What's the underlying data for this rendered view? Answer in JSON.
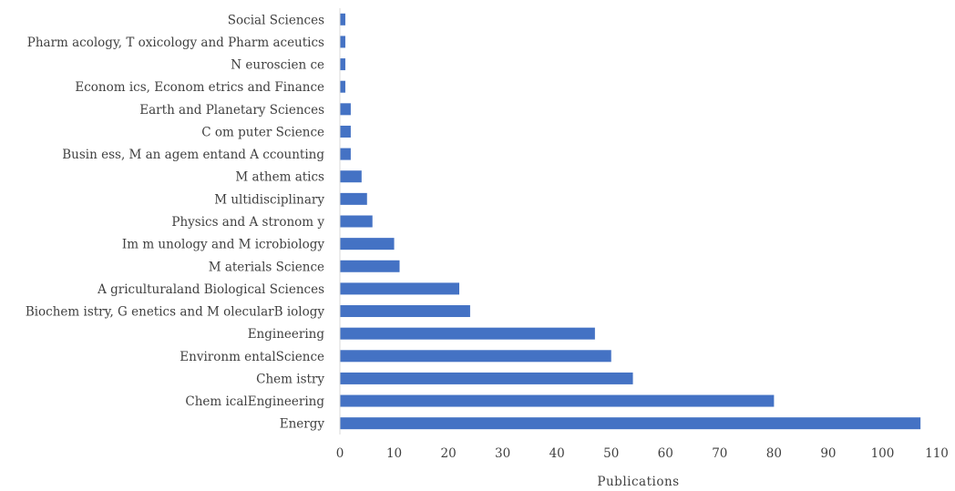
{
  "chart_data": {
    "type": "bar",
    "orientation": "horizontal",
    "title": "",
    "xlabel": "Publications",
    "ylabel": "",
    "xlim": [
      0,
      110
    ],
    "x_ticks": [
      0,
      10,
      20,
      30,
      40,
      50,
      60,
      70,
      80,
      90,
      100,
      110
    ],
    "grid": false,
    "legend": "none",
    "bar_color": "#4472C4",
    "categories": [
      "Energy",
      "Chem icalEngineering",
      "Chem istry",
      "Environm entalScience",
      "Engineering",
      "Biochem istry, G enetics and M olecularB iology",
      "A griculturaland Biological Sciences",
      "M aterials Science",
      "Im m unology and M icrobiology",
      "Physics and A stronom y",
      "M ultidisciplinary",
      "M athem atics",
      "Busin ess, M an agem entand A ccounting",
      "C om puter Science",
      "Earth and Planetary Sciences",
      "Econom ics, Econom etrics and Finance",
      "N euroscien ce",
      "Pharm acology, T oxicology and Pharm aceutics",
      "Social Sciences"
    ],
    "values": [
      107,
      80,
      54,
      50,
      47,
      24,
      22,
      11,
      10,
      6,
      5,
      4,
      2,
      2,
      2,
      1,
      1,
      1,
      1
    ]
  }
}
